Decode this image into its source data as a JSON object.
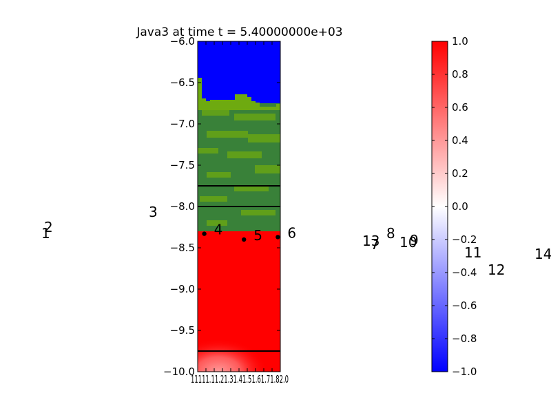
{
  "chart_data": {
    "type": "heatmap",
    "title": "Java3 at time t = 5.40000000e+03",
    "xlabel": "",
    "ylabel": "",
    "xlim": [
      11.0,
      12.0
    ],
    "ylim": [
      -10.0,
      -6.0
    ],
    "x_tick_labels": [
      "11.0",
      "11.1",
      "11.2",
      "11.3",
      "11.4",
      "11.5",
      "11.6",
      "11.7",
      "11.8",
      "11.9",
      "12.0"
    ],
    "x_tick_text": "11111.11.21.31.41.51.61.71.82.0",
    "y_ticks": [
      {
        "value": -6.0,
        "label": "−6.0"
      },
      {
        "value": -6.5,
        "label": "−6.5"
      },
      {
        "value": -7.0,
        "label": "−7.0"
      },
      {
        "value": -7.5,
        "label": "−7.5"
      },
      {
        "value": -8.0,
        "label": "−8.0"
      },
      {
        "value": -8.5,
        "label": "−8.5"
      },
      {
        "value": -9.0,
        "label": "−9.0"
      },
      {
        "value": -9.5,
        "label": "−9.5"
      },
      {
        "value": -10.0,
        "label": "−10.0"
      }
    ],
    "regions": [
      {
        "name": "upper",
        "y_from": -6.0,
        "y_to": -6.75,
        "value": -1.0,
        "color": "#0000ff"
      },
      {
        "name": "vegetation",
        "y_from": -6.75,
        "y_to": -8.3,
        "color_primary": "#398139",
        "color_secondary": "#6eaa10"
      },
      {
        "name": "lower",
        "y_from": -8.3,
        "y_to": -10.0,
        "value": 1.0,
        "color": "#ff0000"
      }
    ],
    "horizontal_lines": [
      -7.75,
      -8.0,
      -9.75
    ],
    "points": [
      {
        "x": 11.08,
        "y": -8.33,
        "label": "4"
      },
      {
        "x": 11.56,
        "y": -8.4,
        "label": "5"
      },
      {
        "x": 11.97,
        "y": -8.37,
        "label": "6"
      }
    ],
    "outside_labels": [
      "1",
      "2",
      "3",
      "7",
      "8",
      "9",
      "10",
      "11",
      "12",
      "13",
      "14"
    ],
    "colorbar": {
      "min": -1.0,
      "max": 1.0,
      "colors": [
        "#0000ff",
        "#ffffff",
        "#ff0000"
      ],
      "tick_values": [
        -1.0,
        -0.8,
        -0.6,
        -0.4,
        -0.2,
        0.0,
        0.2,
        0.4,
        0.6,
        0.8,
        1.0
      ],
      "tick_labels": [
        "−1.0",
        "−0.8",
        "−0.6",
        "−0.4",
        "−0.2",
        "0.0",
        "0.2",
        "0.4",
        "0.6",
        "0.8",
        "1.0"
      ]
    }
  }
}
